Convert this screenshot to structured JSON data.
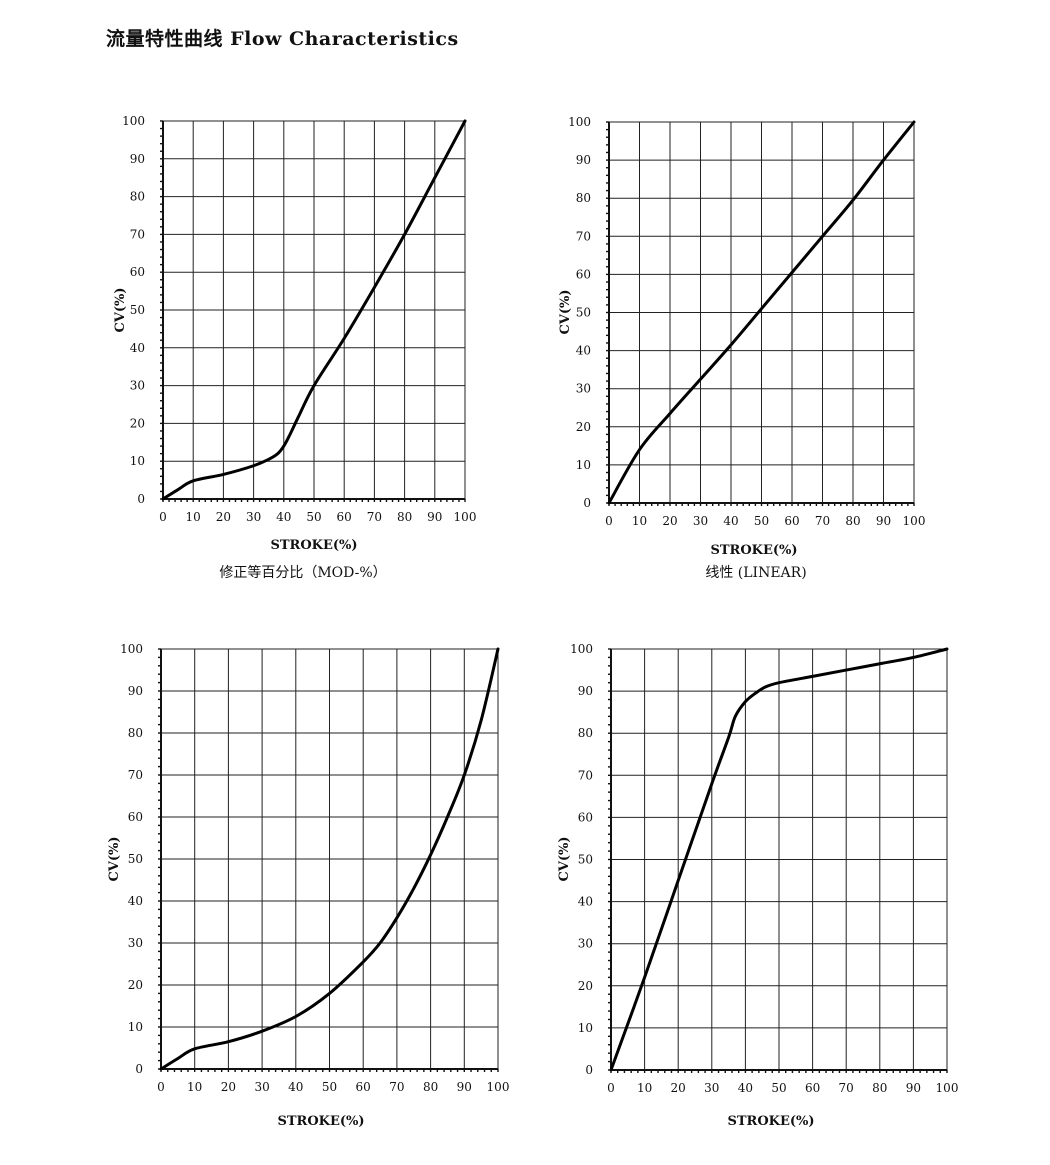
{
  "page": {
    "title": "流量特性曲线  Flow  Characteristics"
  },
  "chart_data": [
    {
      "type": "line",
      "xlabel": "STROKE(%)",
      "ylabel": "CV(%)",
      "caption": "修正等百分比（MOD-%）",
      "xlim": [
        0,
        100
      ],
      "ylim": [
        0,
        100
      ],
      "xticks": [
        0,
        10,
        20,
        30,
        40,
        50,
        60,
        70,
        80,
        90,
        100
      ],
      "yticks": [
        0,
        10,
        20,
        30,
        40,
        50,
        60,
        70,
        80,
        90,
        100
      ],
      "grid": true,
      "series": [
        {
          "x": [
            0,
            5,
            10,
            20,
            30,
            35,
            38,
            40,
            42,
            45,
            50,
            60,
            70,
            80,
            90,
            100
          ],
          "y": [
            0,
            2.5,
            4.8,
            6.5,
            8.8,
            10.5,
            12,
            14,
            17,
            22,
            30,
            42.5,
            56,
            70,
            85,
            100
          ]
        }
      ]
    },
    {
      "type": "line",
      "xlabel": "STROKE(%)",
      "ylabel": "CV(%)",
      "caption": "线性 (LINEAR)",
      "xlim": [
        0,
        100
      ],
      "ylim": [
        0,
        100
      ],
      "xticks": [
        0,
        10,
        20,
        30,
        40,
        50,
        60,
        70,
        80,
        90,
        100
      ],
      "yticks": [
        0,
        10,
        20,
        30,
        40,
        50,
        60,
        70,
        80,
        90,
        100
      ],
      "grid": true,
      "series": [
        {
          "x": [
            0,
            10,
            20,
            30,
            40,
            50,
            60,
            70,
            80,
            90,
            100
          ],
          "y": [
            0,
            14,
            23.5,
            32.5,
            41.5,
            51,
            60.5,
            70,
            79.5,
            90,
            100
          ]
        }
      ]
    },
    {
      "type": "line",
      "xlabel": "STROKE(%)",
      "ylabel": "CV(%)",
      "caption": "",
      "xlim": [
        0,
        100
      ],
      "ylim": [
        0,
        100
      ],
      "xticks": [
        0,
        10,
        20,
        30,
        40,
        50,
        60,
        70,
        80,
        90,
        100
      ],
      "yticks": [
        0,
        10,
        20,
        30,
        40,
        50,
        60,
        70,
        80,
        90,
        100
      ],
      "grid": true,
      "series": [
        {
          "x": [
            0,
            5,
            10,
            20,
            30,
            40,
            50,
            60,
            65,
            70,
            75,
            80,
            85,
            90,
            95,
            100
          ],
          "y": [
            0,
            2.5,
            4.8,
            6.5,
            9,
            12.5,
            18,
            25.5,
            30,
            36,
            43,
            51,
            60,
            70,
            83,
            100
          ]
        }
      ]
    },
    {
      "type": "line",
      "xlabel": "STROKE(%)",
      "ylabel": "CV(%)",
      "caption": "",
      "xlim": [
        0,
        100
      ],
      "ylim": [
        0,
        100
      ],
      "xticks": [
        0,
        10,
        20,
        30,
        40,
        50,
        60,
        70,
        80,
        90,
        100
      ],
      "yticks": [
        0,
        10,
        20,
        30,
        40,
        50,
        60,
        70,
        80,
        90,
        100
      ],
      "grid": true,
      "series": [
        {
          "x": [
            0,
            10,
            20,
            30,
            35,
            37,
            40,
            43,
            46,
            50,
            60,
            70,
            80,
            90,
            100
          ],
          "y": [
            0,
            22,
            45,
            68,
            79,
            84,
            87.5,
            89.5,
            91,
            92,
            93.5,
            95,
            96.5,
            98,
            100
          ]
        }
      ]
    }
  ]
}
